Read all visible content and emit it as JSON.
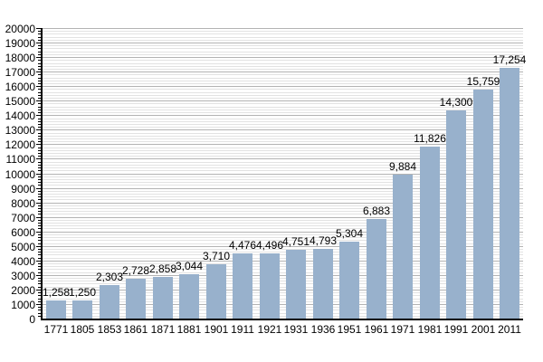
{
  "chart_data": {
    "type": "bar",
    "title": "",
    "xlabel": "",
    "ylabel": "",
    "categories": [
      "1771",
      "1805",
      "1853",
      "1861",
      "1871",
      "1881",
      "1901",
      "1911",
      "1921",
      "1931",
      "1936",
      "1951",
      "1961",
      "1971",
      "1981",
      "1991",
      "2001",
      "2011"
    ],
    "values": [
      1258,
      1250,
      2303,
      2728,
      2858,
      3044,
      3710,
      4476,
      4496,
      4751,
      4793,
      5304,
      6883,
      9884,
      11826,
      14300,
      15759,
      17254
    ],
    "value_labels": [
      "1,258",
      "1,250",
      "2,303",
      "2,728",
      "2,858",
      "3,044",
      "3,710",
      "4,476",
      "4,496",
      "4,751",
      "4,793",
      "5,304",
      "6,883",
      "9,884",
      "11,826",
      "14,300",
      "15,759",
      "17,254"
    ],
    "ylim": [
      0,
      20000
    ],
    "y_major_step": 1000,
    "y_minor_step": 200,
    "y_tick_labels": [
      "0",
      "1000",
      "2000",
      "3000",
      "4000",
      "5000",
      "6000",
      "7000",
      "8000",
      "9000",
      "10000",
      "11000",
      "12000",
      "13000",
      "14000",
      "15000",
      "16000",
      "17000",
      "18000",
      "19000",
      "20000"
    ],
    "grid": "horizontal-major-and-minor",
    "legend": "none",
    "colors": {
      "bar": "#98B1CC",
      "major_grid": "#B3B3B3",
      "minor_grid": "#E2E2E2",
      "axis": "#000000",
      "text": "#000000",
      "background": "#FFFFFF"
    }
  }
}
